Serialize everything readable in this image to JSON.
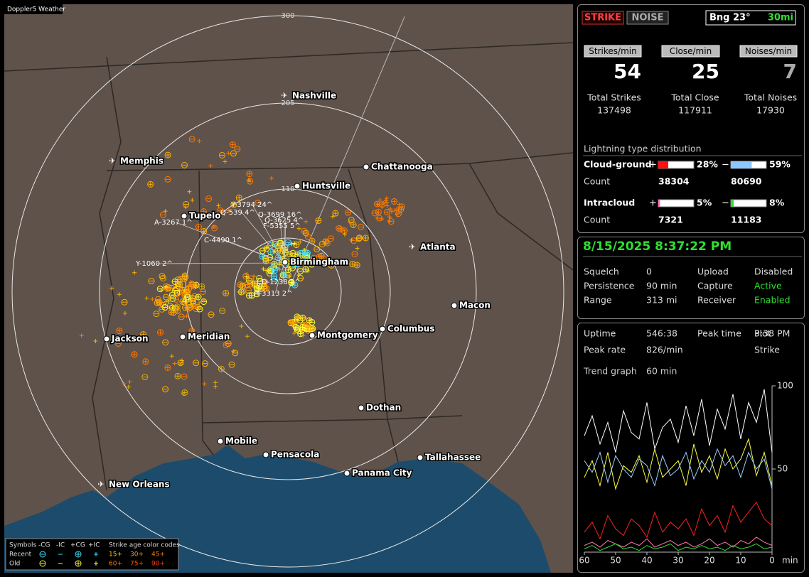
{
  "map": {
    "title": "Doppler5 Weather",
    "range_labels": [
      "300",
      "205",
      "110"
    ],
    "cities": [
      "Nashville",
      "Memphis",
      "Chattanooga",
      "Huntsville",
      "Tupelo",
      "Atlanta",
      "Birmingham",
      "Macon",
      "Jackson",
      "Meridian",
      "Montgomery",
      "Columbus",
      "Dothan",
      "Mobile",
      "Pensacola",
      "Tallahassee",
      "Panama City",
      "New Orleans"
    ],
    "strike_labels": [
      "Y-3794 24^",
      "Q-539 4^",
      "Q-3699 16^",
      "Q-3625 4^",
      "F-5355 5^",
      "A-3267 1^",
      "C-4490 1^",
      "Y-1060 2^",
      "D-1238 2^",
      "H-3313 2^"
    ],
    "legend": {
      "symbols": "Symbols",
      "minus_cg": "-CG",
      "minus_ic": "-IC",
      "plus_cg": "+CG",
      "plus_ic": "+IC",
      "age_title": "Strike age color codes",
      "recent": "Recent",
      "old": "Old",
      "ages": [
        "15+",
        "30+",
        "45+",
        "60+",
        "75+",
        "90+"
      ]
    }
  },
  "header": {
    "strike_button": "STRIKE",
    "noise_button": "NOISE",
    "bearing": "Bng 23°",
    "distance": "30mi"
  },
  "rates": [
    {
      "label": "Strikes/min",
      "value": 54,
      "total_label": "Total Strikes",
      "total": 137498
    },
    {
      "label": "Close/min",
      "value": 25,
      "total_label": "Total Close",
      "total": 117911
    },
    {
      "label": "Noises/min",
      "value": 7,
      "total_label": "Total Noises",
      "total": 17930
    }
  ],
  "distribution": {
    "title": "Lightning type distribution",
    "count_label": "Count",
    "rows": [
      {
        "name": "Cloud-ground",
        "plus_sign": "+",
        "plus_pct": "28%",
        "minus_sign": "−",
        "minus_pct": "59%",
        "plus_count": 38304,
        "minus_count": 80690
      },
      {
        "name": "Intracloud",
        "plus_sign": "+",
        "plus_pct": "5%",
        "minus_sign": "−",
        "minus_pct": "8%",
        "plus_count": 7321,
        "minus_count": 11183
      }
    ]
  },
  "status": {
    "datetime": "8/15/2025 8:37:22 PM",
    "rows": [
      [
        "Squelch",
        "0",
        "Upload",
        "Disabled"
      ],
      [
        "Persistence",
        "90 min",
        "Capture",
        "Active"
      ],
      [
        "Range",
        "313 mi",
        "Receiver",
        "Enabled"
      ]
    ]
  },
  "stats": {
    "rows": [
      [
        "Uptime",
        "546:38",
        "Peak time",
        "3:38 PM",
        "Plot"
      ],
      [
        "Peak rate",
        "826/min",
        "",
        "",
        "Strike"
      ]
    ],
    "trend_label": "Trend graph",
    "trend_value": "60 min"
  },
  "trend": {
    "xlim": [
      60,
      0
    ],
    "ylim": [
      0,
      100
    ],
    "xticks": [
      60,
      50,
      40,
      30,
      20,
      10,
      0
    ],
    "x_unit": "min",
    "yticks": [
      50,
      100
    ],
    "x": [
      60,
      57.5,
      55,
      52.5,
      50,
      47.5,
      45,
      42.5,
      40,
      37.5,
      35,
      32.5,
      30,
      27.5,
      25,
      22.5,
      20,
      17.5,
      15,
      12.5,
      10,
      7.5,
      5,
      2.5,
      0
    ],
    "series": [
      {
        "color": "#ffffff",
        "values": [
          70,
          82,
          65,
          78,
          60,
          85,
          72,
          68,
          90,
          62,
          75,
          80,
          66,
          88,
          70,
          92,
          64,
          86,
          74,
          95,
          68,
          90,
          78,
          98,
          60
        ]
      },
      {
        "color": "#ffff40",
        "values": [
          45,
          55,
          40,
          60,
          38,
          52,
          48,
          58,
          42,
          62,
          45,
          50,
          55,
          40,
          65,
          48,
          58,
          44,
          62,
          50,
          56,
          68,
          46,
          60,
          40
        ]
      },
      {
        "color": "#9cd0ff",
        "values": [
          55,
          48,
          60,
          42,
          58,
          50,
          45,
          56,
          52,
          40,
          58,
          46,
          50,
          60,
          44,
          55,
          48,
          62,
          52,
          58,
          45,
          60,
          50,
          56,
          38
        ]
      },
      {
        "color": "#ff2020",
        "values": [
          12,
          18,
          8,
          22,
          14,
          10,
          20,
          16,
          9,
          24,
          12,
          18,
          14,
          20,
          10,
          26,
          16,
          22,
          12,
          28,
          18,
          24,
          30,
          20,
          16
        ]
      },
      {
        "color": "#ff7ab0",
        "values": [
          4,
          6,
          3,
          7,
          5,
          3,
          6,
          4,
          8,
          3,
          5,
          7,
          4,
          6,
          3,
          5,
          8,
          4,
          6,
          3,
          7,
          5,
          9,
          6,
          4
        ]
      },
      {
        "color": "#30e030",
        "values": [
          2,
          4,
          1,
          3,
          5,
          2,
          3,
          1,
          4,
          2,
          3,
          5,
          1,
          3,
          2,
          4,
          2,
          3,
          1,
          4,
          2,
          3,
          5,
          2,
          3
        ]
      }
    ]
  }
}
